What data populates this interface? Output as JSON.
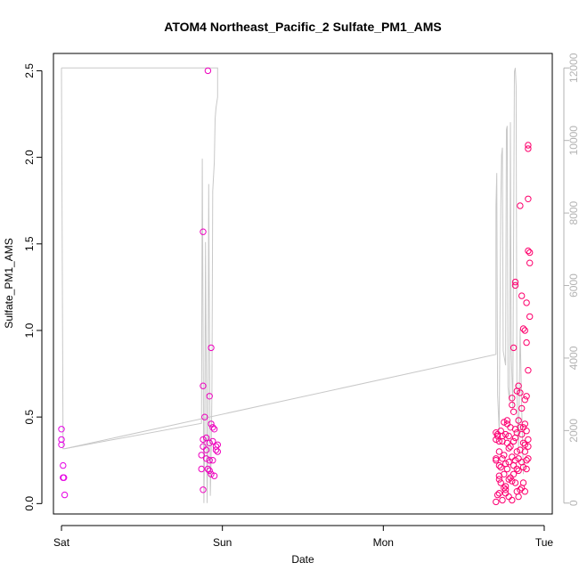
{
  "chart_data": {
    "type": "scatter",
    "title": "ATOM4 Northeast_Pacific_2 Sulfate_PM1_AMS",
    "xlabel": "Date",
    "ylabel": "Sulfate_PM1_AMS",
    "x_axis": {
      "type": "date",
      "ticks": [
        "Sat",
        "Sun",
        "Mon",
        "Tue"
      ],
      "range_days": [
        -0.05,
        3.05
      ]
    },
    "y_axis": {
      "range": [
        -0.06,
        2.6
      ],
      "ticks": [
        0.0,
        0.5,
        1.0,
        1.5,
        2.0,
        2.5
      ]
    },
    "y2_axis": {
      "range": [
        -300,
        12400
      ],
      "ticks": [
        0,
        2000,
        4000,
        6000,
        8000,
        10000,
        12000
      ]
    },
    "colors": {
      "points_start": "#e600e6",
      "points_end": "#ff0066",
      "line": "#c8c8c8",
      "right_axis": "#b3b3b3"
    },
    "series": [
      {
        "type": "points",
        "axis": "left",
        "points": [
          [
            0.0,
            0.43
          ],
          [
            0.0,
            0.37
          ],
          [
            0.0,
            0.34
          ],
          [
            0.01,
            0.22
          ],
          [
            0.01,
            0.15
          ],
          [
            0.015,
            0.15
          ],
          [
            0.02,
            0.05
          ],
          [
            0.88,
            1.57
          ],
          [
            0.88,
            0.68
          ],
          [
            0.89,
            0.5
          ],
          [
            0.88,
            0.37
          ],
          [
            0.88,
            0.33
          ],
          [
            0.87,
            0.28
          ],
          [
            0.87,
            0.2
          ],
          [
            0.88,
            0.08
          ],
          [
            0.9,
            0.38
          ],
          [
            0.9,
            0.31
          ],
          [
            0.9,
            0.26
          ],
          [
            0.91,
            0.2
          ],
          [
            0.92,
            0.62
          ],
          [
            0.93,
            0.9
          ],
          [
            0.93,
            0.46
          ],
          [
            0.92,
            0.35
          ],
          [
            0.92,
            0.25
          ],
          [
            0.92,
            0.19
          ],
          [
            0.93,
            0.17
          ],
          [
            0.94,
            0.44
          ],
          [
            0.94,
            0.36
          ],
          [
            0.94,
            0.25
          ],
          [
            0.95,
            0.16
          ],
          [
            0.95,
            0.43
          ],
          [
            0.96,
            0.33
          ],
          [
            0.97,
            0.3
          ],
          [
            0.97,
            0.34
          ],
          [
            0.91,
            2.5
          ],
          [
            0.96,
            0.31
          ],
          [
            2.7,
            0.26
          ],
          [
            2.7,
            0.25
          ],
          [
            2.7,
            0.41
          ],
          [
            2.7,
            0.37
          ],
          [
            2.7,
            0.01
          ],
          [
            2.71,
            0.05
          ],
          [
            2.71,
            0.4
          ],
          [
            2.71,
            0.39
          ],
          [
            2.72,
            0.36
          ],
          [
            2.72,
            0.3
          ],
          [
            2.72,
            0.16
          ],
          [
            2.72,
            0.14
          ],
          [
            2.72,
            0.06
          ],
          [
            2.73,
            0.42
          ],
          [
            2.73,
            0.21
          ],
          [
            2.73,
            0.12
          ],
          [
            2.74,
            0.36
          ],
          [
            2.74,
            0.39
          ],
          [
            2.75,
            0.47
          ],
          [
            2.75,
            0.28
          ],
          [
            2.75,
            0.17
          ],
          [
            2.75,
            0.09
          ],
          [
            2.76,
            0.4
          ],
          [
            2.76,
            0.23
          ],
          [
            2.76,
            0.08
          ],
          [
            2.76,
            0.06
          ],
          [
            2.77,
            0.46
          ],
          [
            2.77,
            0.35
          ],
          [
            2.77,
            0.2
          ],
          [
            2.78,
            0.39
          ],
          [
            2.78,
            0.32
          ],
          [
            2.78,
            0.14
          ],
          [
            2.78,
            0.04
          ],
          [
            2.79,
            0.33
          ],
          [
            2.79,
            0.44
          ],
          [
            2.8,
            0.57
          ],
          [
            2.8,
            0.61
          ],
          [
            2.8,
            0.27
          ],
          [
            2.8,
            0.02
          ],
          [
            2.81,
            0.9
          ],
          [
            2.81,
            0.53
          ],
          [
            2.81,
            0.36
          ],
          [
            2.81,
            0.22
          ],
          [
            2.82,
            0.43
          ],
          [
            2.82,
            0.38
          ],
          [
            2.82,
            0.25
          ],
          [
            2.82,
            0.12
          ],
          [
            2.83,
            0.65
          ],
          [
            2.83,
            0.41
          ],
          [
            2.83,
            0.3
          ],
          [
            2.83,
            0.07
          ],
          [
            2.84,
            0.68
          ],
          [
            2.84,
            0.48
          ],
          [
            2.84,
            0.19
          ],
          [
            2.84,
            0.04
          ],
          [
            2.85,
            1.72
          ],
          [
            2.85,
            0.64
          ],
          [
            2.85,
            0.44
          ],
          [
            2.85,
            0.31
          ],
          [
            2.86,
            1.2
          ],
          [
            2.86,
            0.4
          ],
          [
            2.86,
            0.24
          ],
          [
            2.86,
            0.09
          ],
          [
            2.87,
            1.01
          ],
          [
            2.87,
            0.35
          ],
          [
            2.87,
            0.21
          ],
          [
            2.88,
            1.0
          ],
          [
            2.88,
            0.46
          ],
          [
            2.88,
            0.34
          ],
          [
            2.88,
            0.07
          ],
          [
            2.89,
            1.16
          ],
          [
            2.89,
            0.62
          ],
          [
            2.89,
            0.42
          ],
          [
            2.89,
            0.25
          ],
          [
            2.9,
            1.46
          ],
          [
            2.9,
            0.77
          ],
          [
            2.9,
            0.37
          ],
          [
            2.9,
            0.33
          ],
          [
            2.9,
            2.05
          ],
          [
            2.9,
            2.07
          ],
          [
            2.9,
            1.76
          ],
          [
            2.91,
            1.45
          ],
          [
            2.91,
            1.39
          ],
          [
            2.91,
            1.08
          ],
          [
            2.89,
            0.93
          ],
          [
            2.82,
            1.26
          ],
          [
            2.82,
            1.28
          ],
          [
            2.77,
            0.48
          ],
          [
            2.74,
            0.26
          ],
          [
            2.79,
            0.15
          ],
          [
            2.8,
            0.13
          ],
          [
            2.84,
            0.26
          ],
          [
            2.86,
            0.55
          ],
          [
            2.87,
            0.44
          ],
          [
            2.88,
            0.3
          ],
          [
            2.89,
            0.2
          ],
          [
            2.83,
            0.2
          ],
          [
            2.81,
            0.17
          ],
          [
            2.76,
            0.1
          ],
          [
            2.78,
            0.24
          ],
          [
            2.74,
            0.02
          ],
          [
            2.72,
            0.22
          ],
          [
            2.85,
            0.08
          ],
          [
            2.87,
            0.12
          ],
          [
            2.88,
            0.6
          ],
          [
            2.9,
            0.26
          ]
        ]
      },
      {
        "type": "line",
        "axis": "right",
        "points": [
          [
            0.0,
            12000
          ],
          [
            0.005,
            12000
          ],
          [
            0.97,
            12000
          ],
          [
            0.97,
            11200
          ],
          [
            0.96,
            10900
          ],
          [
            0.955,
            10600
          ],
          [
            0.95,
            9400
          ],
          [
            0.94,
            8600
          ],
          [
            0.935,
            3000
          ],
          [
            0.93,
            1200
          ],
          [
            0.925,
            200
          ],
          [
            0.915,
            8800
          ],
          [
            0.91,
            1600
          ],
          [
            0.905,
            0
          ],
          [
            0.895,
            7200
          ],
          [
            0.89,
            1800
          ],
          [
            0.885,
            0
          ],
          [
            0.875,
            9500
          ],
          [
            0.87,
            2200
          ],
          [
            0.02,
            1500
          ],
          [
            0.01,
            1500
          ],
          [
            0.0,
            12000
          ]
        ]
      },
      {
        "type": "line",
        "axis": "right",
        "points": [
          [
            0.02,
            1500
          ],
          [
            2.7,
            4100
          ],
          [
            2.7,
            8200
          ],
          [
            2.705,
            9100
          ],
          [
            2.71,
            3000
          ],
          [
            2.72,
            2000
          ],
          [
            2.73,
            8200
          ],
          [
            2.735,
            9600
          ],
          [
            2.74,
            9800
          ],
          [
            2.745,
            4200
          ],
          [
            2.76,
            3800
          ],
          [
            2.765,
            10300
          ],
          [
            2.77,
            10400
          ],
          [
            2.775,
            3200
          ],
          [
            2.785,
            2800
          ],
          [
            2.79,
            10500
          ],
          [
            2.795,
            4200
          ],
          [
            2.805,
            2600
          ],
          [
            2.815,
            11900
          ],
          [
            2.82,
            12000
          ],
          [
            2.825,
            11500
          ],
          [
            2.83,
            3000
          ],
          [
            2.84,
            1500
          ],
          [
            2.85,
            4800
          ],
          [
            2.86,
            2600
          ],
          [
            2.87,
            800
          ]
        ]
      }
    ]
  }
}
